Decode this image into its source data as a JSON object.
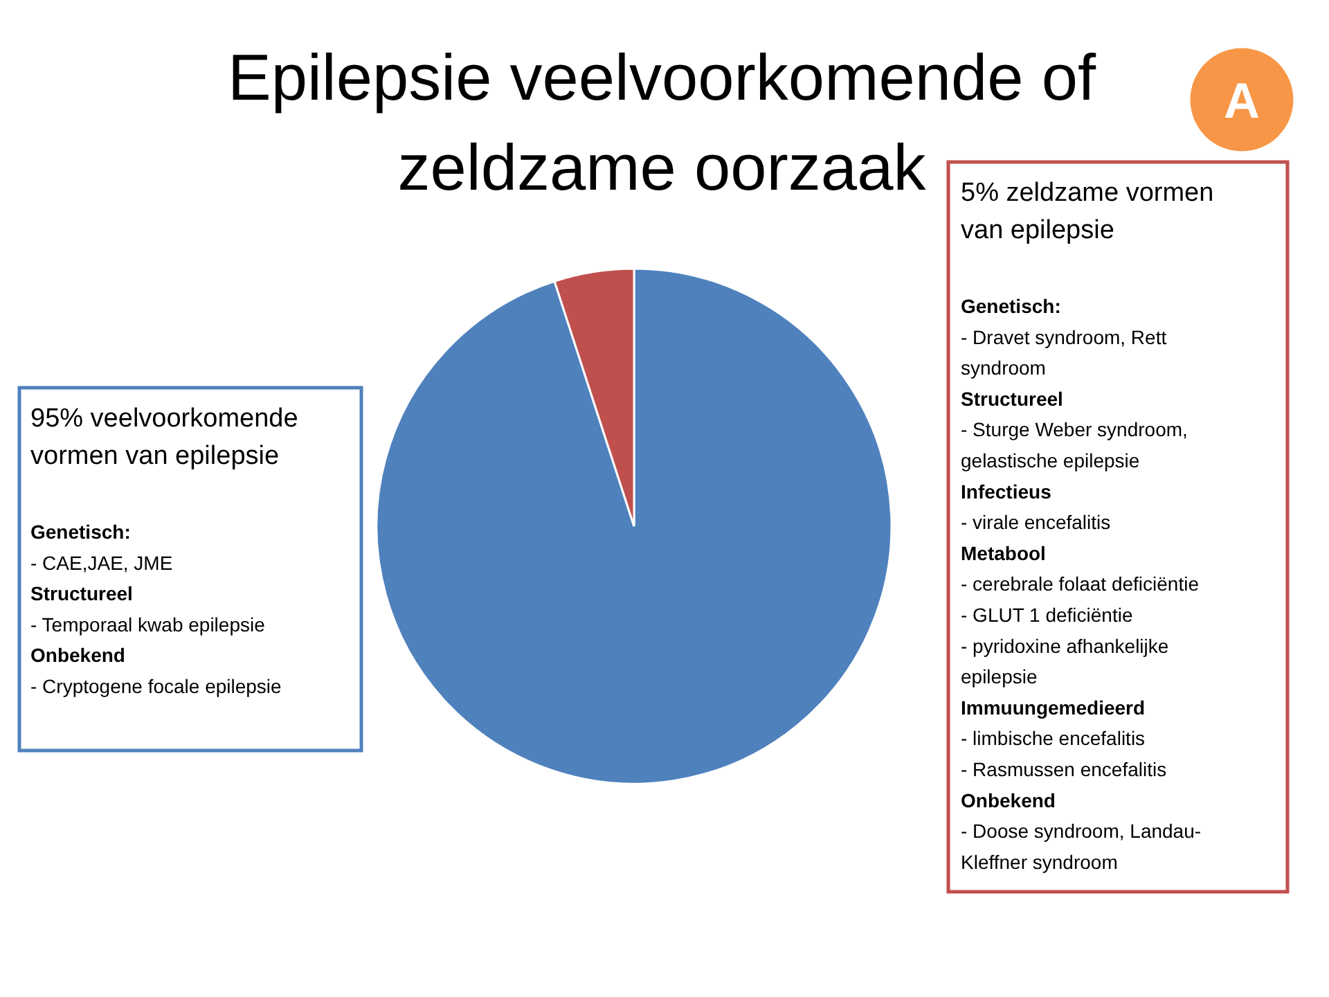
{
  "chart_data": {
    "type": "pie",
    "title": "Epilepsie veelvoorkomende of\nzeldzame oorzaak",
    "categories": [
      null,
      null
    ],
    "values": [
      95,
      5
    ],
    "colors": [
      "#4f81bd",
      "#c0504d"
    ],
    "annotations": [
      "95% veelvoorkomende\nvormen van epilepsie\n\nGenetisch:\n- CAE,JAE, JME\nStructureel\n- Temporaal kwab epilepsie\nOnbekend\n- Cryptogene focale epilepsie",
      "5% zeldzame vormen\nvan epilepsie\n\nGenetisch:\n- Dravet syndroom, Rett\nsyndroom\nStructureel\n- Sturge Weber syndroom,\ngelastische epilepsie\nInfectieus\n- virale encefalitis\nMetabool\n- cerebrale folaat deficiëntie\n- GLUT 1 deficiëntie\n- pyridoxine afhankelijke\nepilepsie\nImmuungemedieerd\n- limbische encefalitis\n- Rasmussen encefalitis\nOnbekend\n- Doose syndroom, Landau-\nKleffner syndroom",
      "A"
    ]
  }
}
